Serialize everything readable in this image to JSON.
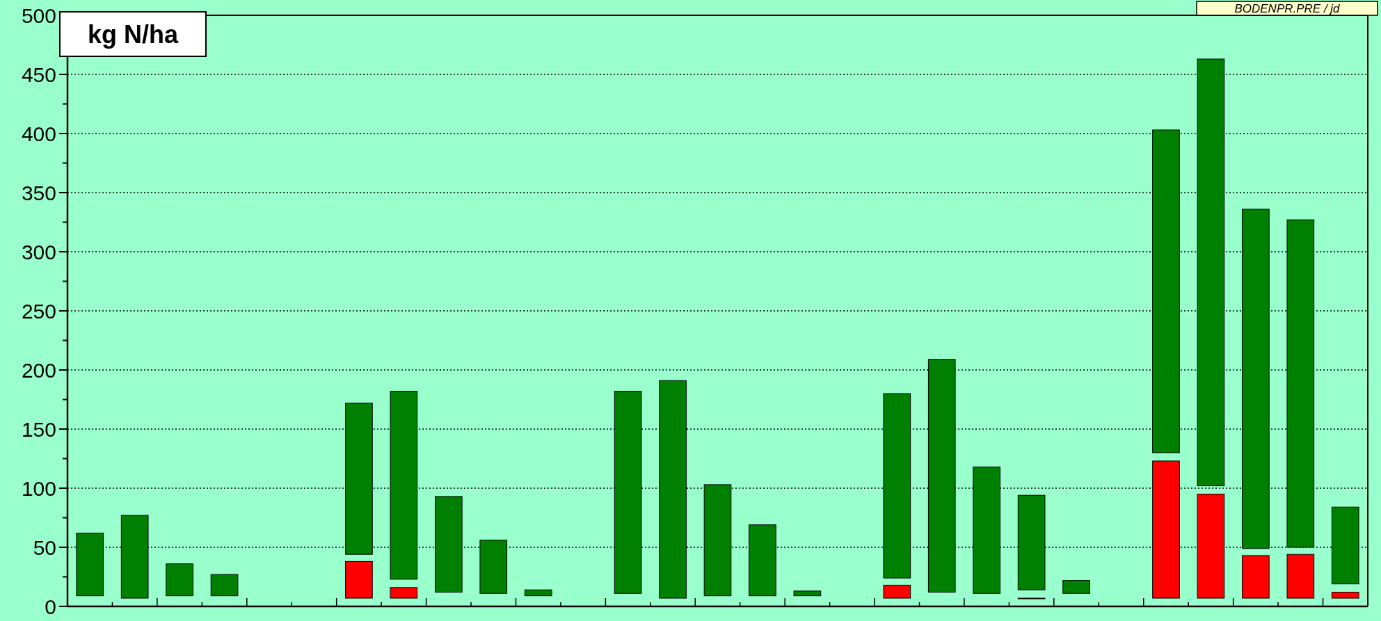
{
  "chart_data": {
    "type": "bar",
    "ylabel": "kg N/ha",
    "annotations": [
      "BODENPR.PRE / jd"
    ],
    "categories": [
      null,
      null,
      null,
      null,
      null,
      null,
      null,
      null,
      null,
      null,
      null,
      null,
      null,
      null,
      null,
      null,
      null,
      null,
      null,
      null,
      null,
      null,
      null,
      null,
      null,
      null,
      null,
      null,
      null
    ],
    "series": [
      {
        "color": "#ff0000",
        "base": [
          null,
          null,
          null,
          null,
          null,
          null,
          7,
          7,
          null,
          null,
          null,
          null,
          null,
          null,
          null,
          null,
          null,
          null,
          7,
          null,
          null,
          7,
          null,
          null,
          7,
          7,
          7,
          7,
          7
        ],
        "values": [
          null,
          null,
          null,
          null,
          null,
          null,
          31,
          9,
          null,
          null,
          null,
          null,
          null,
          null,
          null,
          null,
          null,
          null,
          11,
          null,
          null,
          0,
          null,
          null,
          116,
          88,
          36,
          37,
          5
        ]
      },
      {
        "color": "#008000",
        "base": [
          9,
          7,
          9,
          9,
          null,
          null,
          44,
          23,
          12,
          11,
          9,
          null,
          11,
          7,
          9,
          9,
          9,
          null,
          24,
          12,
          11,
          14,
          11,
          null,
          130,
          102,
          49,
          50,
          19
        ],
        "values": [
          53,
          70,
          27,
          18,
          null,
          null,
          128,
          159,
          81,
          45,
          5,
          null,
          171,
          184,
          94,
          60,
          4,
          null,
          156,
          197,
          107,
          80,
          11,
          null,
          273,
          361,
          287,
          277,
          65
        ]
      }
    ],
    "ylim": [
      0,
      500
    ],
    "yticks": [
      0,
      {
        "value": 25,
        "label": null
      },
      50,
      {
        "value": 75,
        "label": null
      },
      100,
      {
        "value": 125,
        "label": null
      },
      150,
      {
        "value": 175,
        "label": null
      },
      200,
      {
        "value": 225,
        "label": null
      },
      250,
      {
        "value": 275,
        "label": null
      },
      300,
      {
        "value": 325,
        "label": null
      },
      350,
      {
        "value": 375,
        "label": null
      },
      400,
      {
        "value": 425,
        "label": null
      },
      450,
      {
        "value": 475,
        "label": null
      },
      500
    ],
    "grid": "y"
  }
}
